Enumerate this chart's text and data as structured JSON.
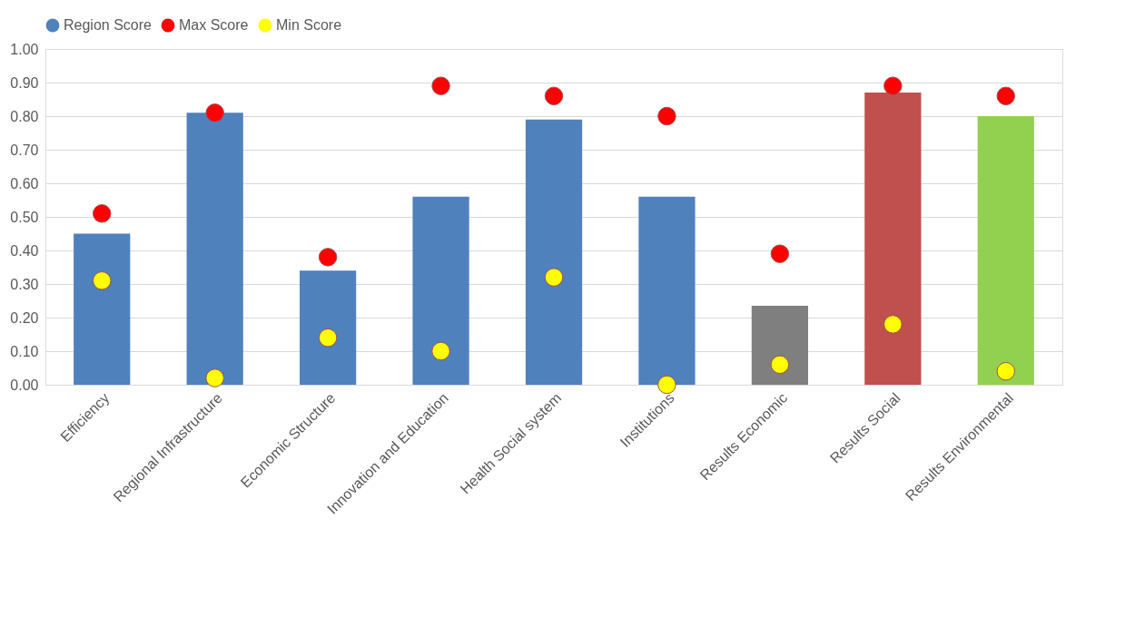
{
  "chart_data": {
    "type": "bar",
    "categories": [
      "Efficiency",
      "Regional Infrastructure",
      "Economic Structure",
      "Innovation and Education",
      "Health Social system",
      "Institutions",
      "Results Economic",
      "Results Social",
      "Results Environmental"
    ],
    "series": [
      {
        "name": "Region Score",
        "color": "#4f81bd",
        "colors": [
          "#4f81bd",
          "#4f81bd",
          "#4f81bd",
          "#4f81bd",
          "#4f81bd",
          "#4f81bd",
          "#7f7f7f",
          "#c0504d",
          "#92d050"
        ],
        "values": [
          0.45,
          0.81,
          0.34,
          0.56,
          0.79,
          0.56,
          0.235,
          0.87,
          0.8
        ]
      },
      {
        "name": "Max Score",
        "type": "scatter",
        "color": "#ff0000",
        "values": [
          0.51,
          0.81,
          0.38,
          0.89,
          0.86,
          0.8,
          0.39,
          0.89,
          0.86
        ]
      },
      {
        "name": "Min Score",
        "type": "scatter",
        "color": "#ffff00",
        "values": [
          0.31,
          0.02,
          0.14,
          0.1,
          0.32,
          0.0,
          0.06,
          0.18,
          0.04
        ]
      }
    ],
    "ylim": [
      0,
      1
    ],
    "yticks": [
      {
        "value": 0,
        "label": "0.00"
      },
      {
        "value": 0.1,
        "label": "0.10"
      },
      {
        "value": 0.2,
        "label": "0.20"
      },
      {
        "value": 0.3,
        "label": "0.30"
      },
      {
        "value": 0.4,
        "label": "0.40"
      },
      {
        "value": 0.5,
        "label": "0.50"
      },
      {
        "value": 0.6,
        "label": "0.60"
      },
      {
        "value": 0.7,
        "label": "0.70"
      },
      {
        "value": 0.8,
        "label": "0.80"
      },
      {
        "value": 0.9,
        "label": "0.90"
      },
      {
        "value": 1,
        "label": "1.00"
      }
    ],
    "grid": "y",
    "legend": "top",
    "marker": "circle"
  }
}
